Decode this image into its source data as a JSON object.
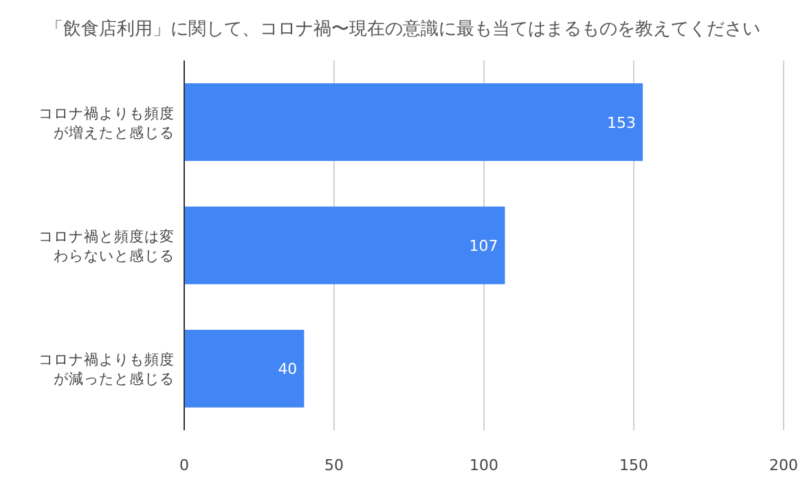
{
  "chart_data": {
    "type": "bar",
    "orientation": "horizontal",
    "title": "「飲食店利用」に関して、コロナ禍〜現在の意識に最も当てはまるものを教えてください",
    "categories": [
      "コロナ禍よりも頻度が増えたと感じる",
      "コロナ禍と頻度は変わらないと感じる",
      "コロナ禍よりも頻度が減ったと感じる"
    ],
    "values": [
      153,
      107,
      40
    ],
    "color": "#4285f4",
    "xlim": [
      0,
      200
    ],
    "xticks": [
      0,
      50,
      100,
      150,
      200
    ],
    "grid": "x",
    "data_labels": true
  }
}
